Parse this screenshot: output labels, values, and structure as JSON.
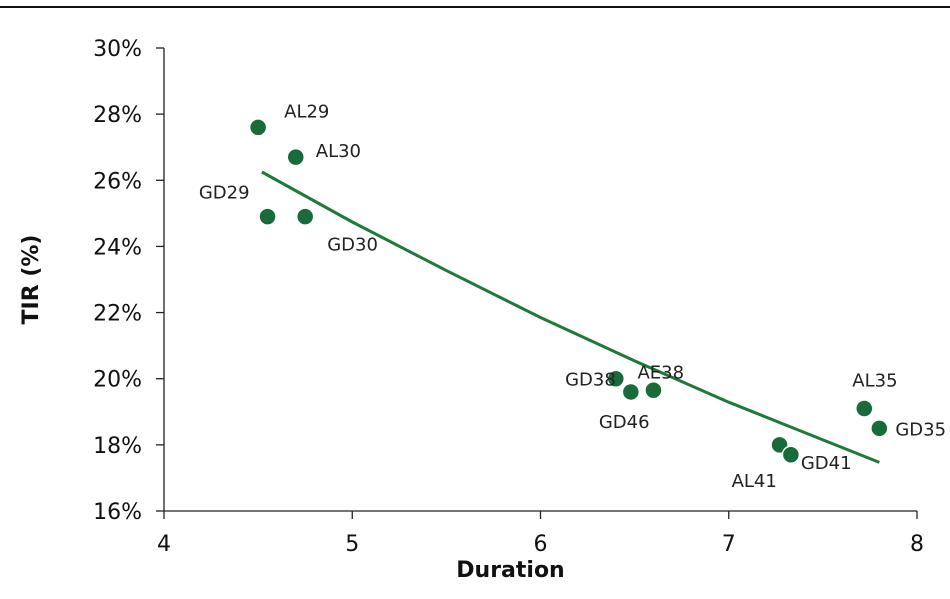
{
  "chart_data": {
    "type": "scatter",
    "xlabel": "Duration",
    "ylabel": "TIR (%)",
    "xlim": [
      4,
      8
    ],
    "ylim": [
      0.16,
      0.3
    ],
    "xticks": [
      4,
      5,
      6,
      7,
      8
    ],
    "xtick_labels": [
      "4",
      "5",
      "6",
      "7",
      "8"
    ],
    "yticks": [
      0.16,
      0.18,
      0.2,
      0.22,
      0.24,
      0.26,
      0.28,
      0.3
    ],
    "ytick_labels": [
      "16%",
      "18%",
      "20%",
      "22%",
      "24%",
      "26%",
      "28%",
      "30%"
    ],
    "grid": false,
    "marker_color": "#1a6b3a",
    "marker_edge_color": "#ffffff",
    "trend_color": "#1f7a3a",
    "points": [
      {
        "label": "AL29",
        "x": 4.5,
        "y": 0.276
      },
      {
        "label": "AL30",
        "x": 4.7,
        "y": 0.267
      },
      {
        "label": "GD29",
        "x": 4.55,
        "y": 0.249
      },
      {
        "label": "GD30",
        "x": 4.75,
        "y": 0.249
      },
      {
        "label": "GD38",
        "x": 6.4,
        "y": 0.2
      },
      {
        "label": "GD46",
        "x": 6.48,
        "y": 0.196
      },
      {
        "label": "AE38",
        "x": 6.6,
        "y": 0.1965
      },
      {
        "label": "AL41",
        "x": 7.27,
        "y": 0.18
      },
      {
        "label": "GD41",
        "x": 7.33,
        "y": 0.177
      },
      {
        "label": "AL35",
        "x": 7.72,
        "y": 0.191
      },
      {
        "label": "GD35",
        "x": 7.8,
        "y": 0.185
      }
    ],
    "trendline": {
      "x": [
        4.52,
        5.0,
        5.5,
        6.0,
        6.5,
        7.0,
        7.5,
        7.8
      ],
      "y": [
        0.2625,
        0.2474,
        0.2327,
        0.2185,
        0.2054,
        0.1929,
        0.1815,
        0.1747
      ]
    }
  }
}
